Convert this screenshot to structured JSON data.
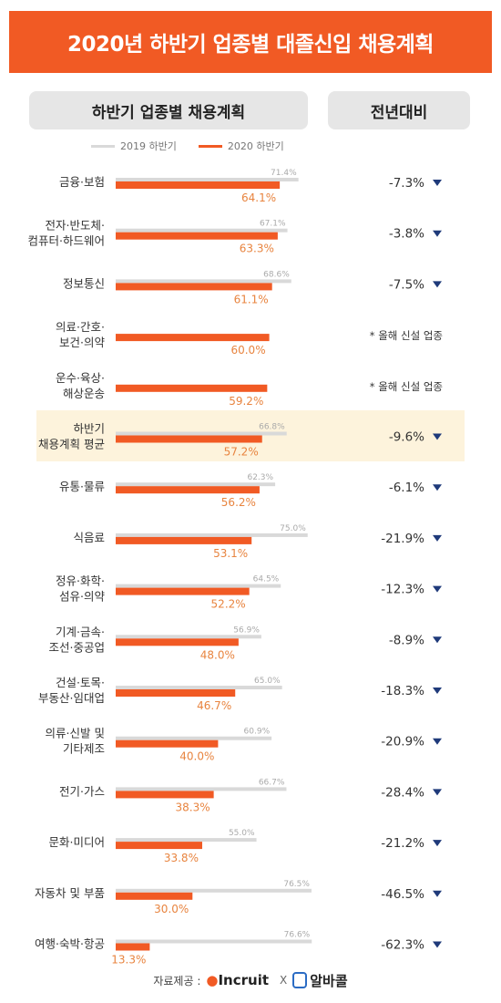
{
  "header": {
    "title": "2020년 하반기 업종별 대졸신입 채용계획"
  },
  "columns": {
    "left": "하반기 업종별 채용계획",
    "right": "전년대비"
  },
  "colors": {
    "accent": "#f15a24",
    "prev": "#d9d9d9",
    "highlight": "#fdf3dc",
    "arrow": "#1f3a7a"
  },
  "chart_data": {
    "type": "bar",
    "series": [
      {
        "name": "2019 하반기",
        "values": [
          71.4,
          67.1,
          68.6,
          null,
          null,
          66.8,
          62.3,
          75.0,
          64.5,
          56.9,
          65.0,
          60.9,
          66.7,
          55.0,
          76.5,
          76.6
        ]
      },
      {
        "name": "2020 하반기",
        "values": [
          64.1,
          63.3,
          61.1,
          60.0,
          59.2,
          57.2,
          56.2,
          53.1,
          52.2,
          48.0,
          46.7,
          40.0,
          38.3,
          33.8,
          30.0,
          13.3
        ]
      }
    ],
    "categories": [
      [
        "금융·보험"
      ],
      [
        "전자·반도체·",
        "컴퓨터·하드웨어"
      ],
      [
        "정보통신"
      ],
      [
        "의료·간호·",
        "보건·의약"
      ],
      [
        "운수·육상·",
        "해상운송"
      ],
      [
        "하반기",
        "채용계획 평균"
      ],
      [
        "유통·물류"
      ],
      [
        "식음료"
      ],
      [
        "정유·화학·",
        "섬유·의약"
      ],
      [
        "기계·금속·",
        "조선·중공업"
      ],
      [
        "건설·토목·",
        "부동산·임대업"
      ],
      [
        "의류·신발 및",
        "기타제조"
      ],
      [
        "전기·가스"
      ],
      [
        "문화·미디어"
      ],
      [
        "자동차 및 부품"
      ],
      [
        "여행·숙박·항공"
      ]
    ],
    "labels_2019": [
      "71.4%",
      "67.1%",
      "68.6%",
      "",
      "",
      "66.8%",
      "62.3%",
      "75.0%",
      "64.5%",
      "56.9%",
      "65.0%",
      "60.9%",
      "66.7%",
      "55.0%",
      "76.5%",
      "76.6%"
    ],
    "labels_2020": [
      "64.1%",
      "63.3%",
      "61.1%",
      "60.0%",
      "59.2%",
      "57.2%",
      "56.2%",
      "53.1%",
      "52.2%",
      "48.0%",
      "46.7%",
      "40.0%",
      "38.3%",
      "33.8%",
      "30.0%",
      "13.3%"
    ],
    "yoy": [
      "-7.3%",
      "-3.8%",
      "-7.5%",
      "* 올해 신설 업종",
      "* 올해 신설 업종",
      "-9.6%",
      "-6.1%",
      "-21.9%",
      "-12.3%",
      "-8.9%",
      "-18.3%",
      "-20.9%",
      "-28.4%",
      "-21.2%",
      "-46.5%",
      "-62.3%"
    ],
    "yoy_arrow": [
      true,
      true,
      true,
      false,
      false,
      true,
      true,
      true,
      true,
      true,
      true,
      true,
      true,
      true,
      true,
      true
    ],
    "highlight_index": 5,
    "xlim": [
      0,
      100
    ]
  },
  "footer": {
    "source_label": "자료제공 :",
    "logo1": "Incruit",
    "separator": "X",
    "logo2": "알바콜"
  }
}
